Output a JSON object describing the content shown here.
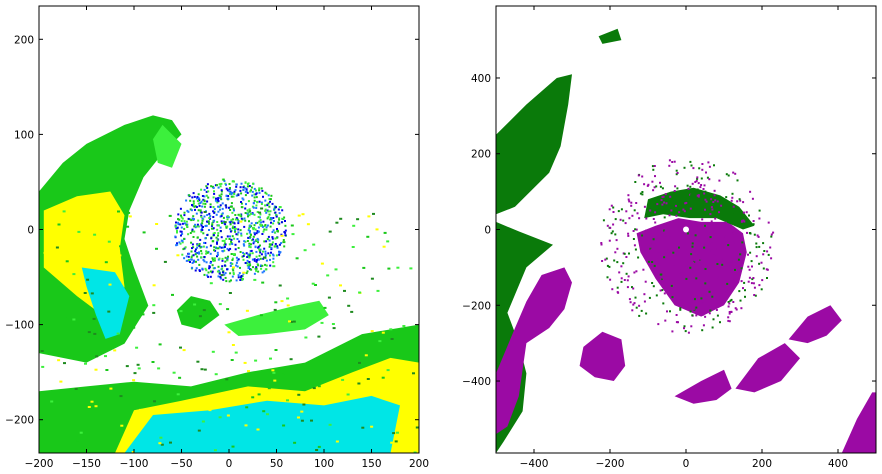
{
  "chart_data": [
    {
      "type": "heatmap",
      "title": "",
      "xlabel": "",
      "ylabel": "",
      "xlim": [
        -200,
        200
      ],
      "ylim": [
        -235,
        235
      ],
      "xticks": [
        -200,
        -150,
        -100,
        -50,
        0,
        50,
        100,
        150,
        200
      ],
      "yticks": [
        -200,
        -100,
        0,
        100,
        200
      ],
      "xtick_labels": [
        "−200",
        "−150",
        "−100",
        "−50",
        "0",
        "50",
        "100",
        "150",
        "200"
      ],
      "ytick_labels": [
        "−200",
        "−100",
        "0",
        "100",
        "200"
      ],
      "grid": false,
      "legend": "none",
      "colors": {
        "dark_green": "#1f8a1f",
        "green": "#19c819",
        "light_green": "#3cf03c",
        "yellow": "#ffff00",
        "cyan": "#00e6e6",
        "blue": "#0000e6",
        "mid_blue": "#1e78ff"
      },
      "regions": [
        {
          "color": "green",
          "points": [
            [
              -200,
              40
            ],
            [
              -175,
              70
            ],
            [
              -150,
              90
            ],
            [
              -110,
              110
            ],
            [
              -80,
              120
            ],
            [
              -60,
              115
            ],
            [
              -50,
              100
            ],
            [
              -70,
              80
            ],
            [
              -90,
              55
            ],
            [
              -105,
              20
            ],
            [
              -110,
              -10
            ],
            [
              -100,
              -40
            ],
            [
              -85,
              -80
            ],
            [
              -110,
              -120
            ],
            [
              -150,
              -140
            ],
            [
              -200,
              -130
            ]
          ]
        },
        {
          "color": "yellow",
          "points": [
            [
              -195,
              20
            ],
            [
              -160,
              35
            ],
            [
              -125,
              40
            ],
            [
              -110,
              15
            ],
            [
              -115,
              -20
            ],
            [
              -110,
              -60
            ],
            [
              -120,
              -100
            ],
            [
              -160,
              -70
            ],
            [
              -195,
              -40
            ]
          ]
        },
        {
          "color": "cyan",
          "points": [
            [
              -155,
              -40
            ],
            [
              -120,
              -45
            ],
            [
              -105,
              -70
            ],
            [
              -115,
              -110
            ],
            [
              -130,
              -115
            ],
            [
              -140,
              -90
            ],
            [
              -150,
              -60
            ]
          ]
        },
        {
          "color": "green",
          "points": [
            [
              -200,
              -235
            ],
            [
              -200,
              -170
            ],
            [
              -150,
              -165
            ],
            [
              -100,
              -160
            ],
            [
              -40,
              -165
            ],
            [
              20,
              -150
            ],
            [
              80,
              -140
            ],
            [
              140,
              -110
            ],
            [
              170,
              -105
            ],
            [
              200,
              -100
            ],
            [
              200,
              -235
            ]
          ]
        },
        {
          "color": "yellow",
          "points": [
            [
              -120,
              -235
            ],
            [
              -100,
              -190
            ],
            [
              -50,
              -180
            ],
            [
              20,
              -165
            ],
            [
              80,
              -170
            ],
            [
              130,
              -150
            ],
            [
              170,
              -135
            ],
            [
              200,
              -140
            ],
            [
              200,
              -235
            ]
          ]
        },
        {
          "color": "cyan",
          "points": [
            [
              -110,
              -235
            ],
            [
              -80,
              -195
            ],
            [
              -20,
              -190
            ],
            [
              40,
              -180
            ],
            [
              100,
              -185
            ],
            [
              150,
              -175
            ],
            [
              180,
              -185
            ],
            [
              170,
              -235
            ]
          ]
        },
        {
          "color": "green",
          "points": [
            [
              -40,
              -70
            ],
            [
              -20,
              -75
            ],
            [
              -10,
              -90
            ],
            [
              -30,
              -105
            ],
            [
              -50,
              -100
            ],
            [
              -55,
              -85
            ]
          ]
        },
        {
          "color": "light_green",
          "points": [
            [
              -5,
              -100
            ],
            [
              30,
              -90
            ],
            [
              70,
              -80
            ],
            [
              95,
              -75
            ],
            [
              105,
              -90
            ],
            [
              80,
              -105
            ],
            [
              40,
              -110
            ],
            [
              10,
              -112
            ]
          ]
        },
        {
          "color": "light_green",
          "points": [
            [
              -70,
              110
            ],
            [
              -50,
              90
            ],
            [
              -60,
              65
            ],
            [
              -75,
              70
            ],
            [
              -80,
              95
            ]
          ]
        }
      ],
      "cluster": {
        "center": [
          0,
          0
        ],
        "radius": 60,
        "colors": [
          "blue",
          "mid_blue",
          "green",
          "light_green"
        ]
      }
    },
    {
      "type": "heatmap",
      "title": "",
      "xlabel": "",
      "ylabel": "",
      "xlim": [
        -500,
        500
      ],
      "ylim": [
        -590,
        590
      ],
      "xticks": [
        -400,
        -200,
        0,
        200,
        400
      ],
      "yticks": [
        -400,
        -200,
        0,
        200,
        400
      ],
      "xtick_labels": [
        "−400",
        "−200",
        "0",
        "200",
        "400"
      ],
      "ytick_labels": [
        "−400",
        "−200",
        "0",
        "200",
        "400"
      ],
      "grid": false,
      "legend": "none",
      "colors": {
        "dark_green": "#0a7a0a",
        "purple": "#9b0aa4"
      },
      "regions": [
        {
          "color": "dark_green",
          "points": [
            [
              -500,
              250
            ],
            [
              -420,
              330
            ],
            [
              -340,
              400
            ],
            [
              -300,
              410
            ],
            [
              -310,
              330
            ],
            [
              -330,
              220
            ],
            [
              -360,
              150
            ],
            [
              -410,
              100
            ],
            [
              -450,
              60
            ],
            [
              -500,
              40
            ]
          ]
        },
        {
          "color": "dark_green",
          "points": [
            [
              -500,
              20
            ],
            [
              -440,
              -5
            ],
            [
              -350,
              -40
            ],
            [
              -420,
              -100
            ],
            [
              -470,
              -220
            ],
            [
              -440,
              -300
            ],
            [
              -420,
              -380
            ],
            [
              -430,
              -480
            ],
            [
              -480,
              -560
            ],
            [
              -500,
              -590
            ]
          ]
        },
        {
          "color": "purple",
          "points": [
            [
              -500,
              -380
            ],
            [
              -450,
              -260
            ],
            [
              -420,
              -190
            ],
            [
              -380,
              -120
            ],
            [
              -320,
              -100
            ],
            [
              -300,
              -140
            ],
            [
              -320,
              -210
            ],
            [
              -360,
              -260
            ],
            [
              -420,
              -300
            ],
            [
              -440,
              -440
            ],
            [
              -470,
              -520
            ],
            [
              -500,
              -540
            ]
          ]
        },
        {
          "color": "purple",
          "points": [
            [
              -130,
              -10
            ],
            [
              -80,
              10
            ],
            [
              -20,
              30
            ],
            [
              40,
              20
            ],
            [
              110,
              20
            ],
            [
              150,
              -10
            ],
            [
              160,
              -60
            ],
            [
              140,
              -140
            ],
            [
              100,
              -200
            ],
            [
              40,
              -230
            ],
            [
              -30,
              -200
            ],
            [
              -80,
              -130
            ],
            [
              -120,
              -60
            ]
          ]
        },
        {
          "color": "dark_green",
          "points": [
            [
              -100,
              80
            ],
            [
              -40,
              100
            ],
            [
              20,
              110
            ],
            [
              90,
              90
            ],
            [
              140,
              60
            ],
            [
              180,
              10
            ],
            [
              150,
              0
            ],
            [
              80,
              30
            ],
            [
              10,
              30
            ],
            [
              -60,
              40
            ],
            [
              -110,
              30
            ]
          ]
        },
        {
          "color": "purple",
          "points": [
            [
              -270,
              -310
            ],
            [
              -220,
              -270
            ],
            [
              -170,
              -290
            ],
            [
              -160,
              -360
            ],
            [
              -190,
              -400
            ],
            [
              -240,
              -390
            ],
            [
              -280,
              -360
            ]
          ]
        },
        {
          "color": "purple",
          "points": [
            [
              -30,
              -440
            ],
            [
              40,
              -400
            ],
            [
              100,
              -370
            ],
            [
              120,
              -420
            ],
            [
              80,
              -450
            ],
            [
              20,
              -460
            ]
          ]
        },
        {
          "color": "purple",
          "points": [
            [
              130,
              -420
            ],
            [
              190,
              -340
            ],
            [
              260,
              -300
            ],
            [
              300,
              -340
            ],
            [
              250,
              -400
            ],
            [
              180,
              -430
            ]
          ]
        },
        {
          "color": "purple",
          "points": [
            [
              270,
              -290
            ],
            [
              320,
              -230
            ],
            [
              380,
              -200
            ],
            [
              410,
              -240
            ],
            [
              370,
              -280
            ],
            [
              320,
              -300
            ]
          ]
        },
        {
          "color": "purple",
          "points": [
            [
              410,
              -590
            ],
            [
              450,
              -500
            ],
            [
              490,
              -430
            ],
            [
              500,
              -430
            ],
            [
              500,
              -590
            ]
          ]
        },
        {
          "color": "dark_green",
          "points": [
            [
              -230,
              510
            ],
            [
              -180,
              530
            ],
            [
              -170,
              500
            ],
            [
              -220,
              490
            ]
          ]
        }
      ],
      "center_marker": [
        0,
        0
      ]
    }
  ]
}
